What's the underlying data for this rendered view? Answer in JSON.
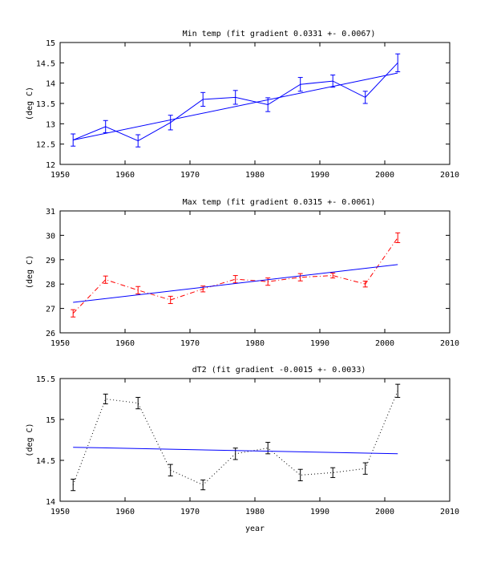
{
  "chart_data": [
    {
      "type": "line",
      "title": "Min temp (fit gradient 0.0331 +- 0.0067)",
      "xlabel": "",
      "ylabel": "(deg C)",
      "xlim": [
        1950,
        2010
      ],
      "ylim": [
        12,
        15
      ],
      "xticks": [
        "1950",
        "1960",
        "1970",
        "1980",
        "1990",
        "2000",
        "2010"
      ],
      "yticks": [
        "12",
        "12.5",
        "13",
        "13.5",
        "14",
        "14.5",
        "15"
      ],
      "grid": false,
      "series": [
        {
          "style": "solid-errorbars",
          "color": "#0000ff",
          "x": [
            1952,
            1957,
            1962,
            1967,
            1972,
            1977,
            1982,
            1987,
            1992,
            1997,
            2002
          ],
          "y": [
            12.6,
            12.93,
            12.58,
            13.03,
            13.6,
            13.65,
            13.47,
            13.97,
            14.05,
            13.65,
            14.5
          ],
          "err": [
            0.15,
            0.15,
            0.15,
            0.18,
            0.17,
            0.17,
            0.17,
            0.17,
            0.15,
            0.15,
            0.22
          ]
        },
        {
          "style": "fit",
          "color": "#0000ff",
          "x": [
            1952,
            2002
          ],
          "y": [
            12.6,
            14.25
          ]
        }
      ]
    },
    {
      "type": "line",
      "title": "Max temp (fit gradient 0.0315 +- 0.0061)",
      "xlabel": "",
      "ylabel": "(deg C)",
      "xlim": [
        1950,
        2010
      ],
      "ylim": [
        26,
        31
      ],
      "xticks": [
        "1950",
        "1960",
        "1970",
        "1980",
        "1990",
        "2000",
        "2010"
      ],
      "yticks": [
        "26",
        "27",
        "28",
        "29",
        "30",
        "31"
      ],
      "grid": false,
      "series": [
        {
          "style": "dashdot-errorbars",
          "color": "#ff0000",
          "x": [
            1952,
            1957,
            1962,
            1967,
            1972,
            1977,
            1982,
            1987,
            1992,
            1997,
            2002
          ],
          "y": [
            26.8,
            28.18,
            27.75,
            27.35,
            27.8,
            28.2,
            28.1,
            28.28,
            28.35,
            28.0,
            29.9
          ],
          "err": [
            0.15,
            0.15,
            0.15,
            0.15,
            0.12,
            0.15,
            0.15,
            0.15,
            0.1,
            0.12,
            0.2
          ]
        },
        {
          "style": "fit",
          "color": "#0000ff",
          "x": [
            1952,
            2002
          ],
          "y": [
            27.25,
            28.8
          ]
        }
      ]
    },
    {
      "type": "line",
      "title": "dT2 (fit gradient -0.0015 +- 0.0033)",
      "xlabel": "year",
      "ylabel": "(deg C)",
      "xlim": [
        1950,
        2010
      ],
      "ylim": [
        14,
        15.5
      ],
      "xticks": [
        "1950",
        "1960",
        "1970",
        "1980",
        "1990",
        "2000",
        "2010"
      ],
      "yticks": [
        "14",
        "14.5",
        "15",
        "15.5"
      ],
      "grid": false,
      "series": [
        {
          "style": "dotted-errorbars",
          "color": "#000000",
          "x": [
            1952,
            1957,
            1962,
            1967,
            1972,
            1977,
            1982,
            1987,
            1992,
            1997,
            2002
          ],
          "y": [
            14.2,
            15.25,
            15.2,
            14.38,
            14.2,
            14.58,
            14.65,
            14.32,
            14.35,
            14.4,
            15.35
          ],
          "err": [
            0.07,
            0.06,
            0.07,
            0.07,
            0.06,
            0.07,
            0.07,
            0.07,
            0.06,
            0.07,
            0.08
          ]
        },
        {
          "style": "fit",
          "color": "#0000ff",
          "x": [
            1952,
            2002
          ],
          "y": [
            14.66,
            14.58
          ]
        }
      ]
    }
  ]
}
